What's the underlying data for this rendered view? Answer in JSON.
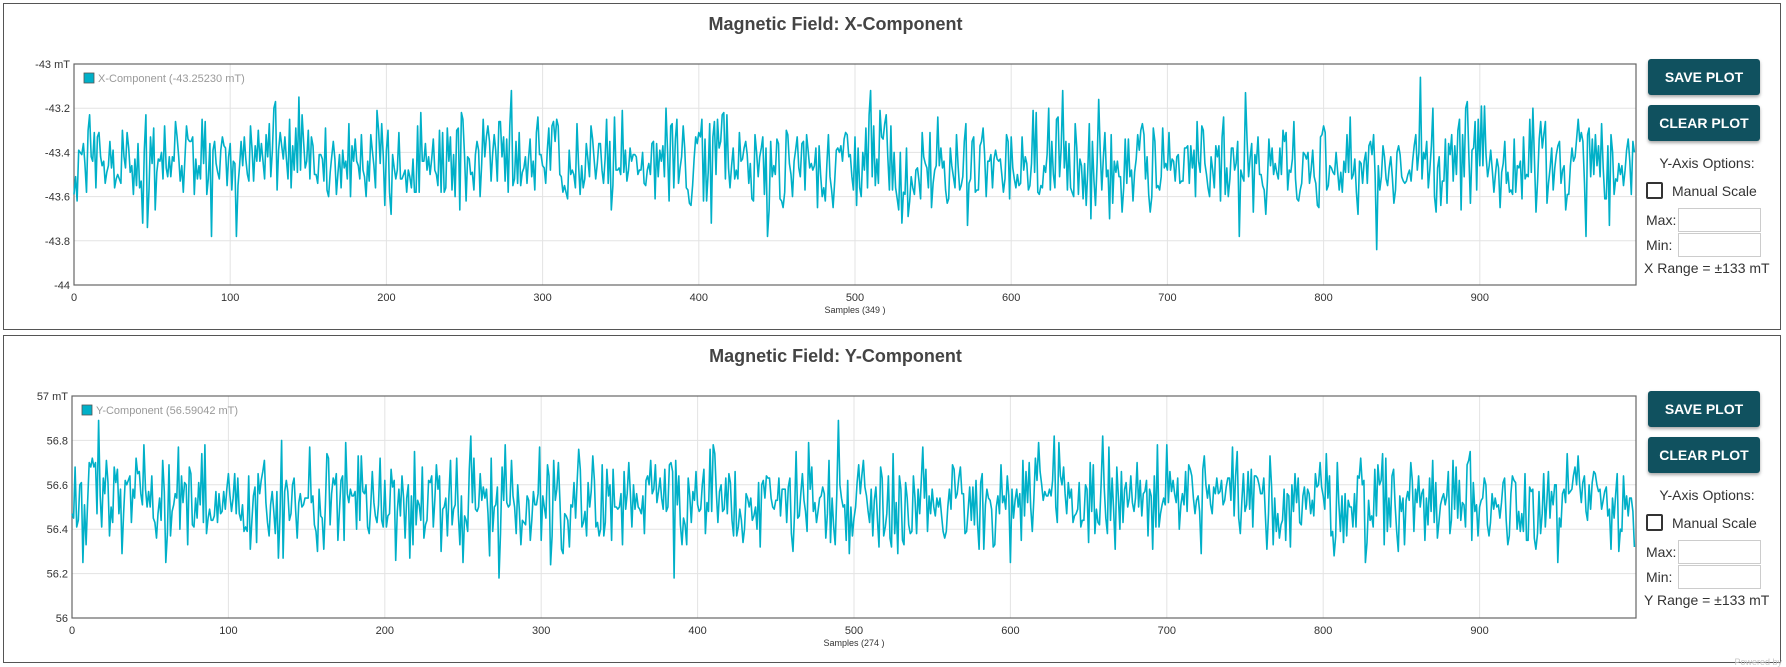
{
  "line_color": "#00b0c8",
  "button_color": "#10515f",
  "watermark": "Powered by",
  "panels": [
    {
      "id": "x",
      "title": "Magnetic Field: X-Component",
      "save_label": "SAVE PLOT",
      "clear_label": "CLEAR PLOT",
      "y_options_label": "Y-Axis Options:",
      "manual_scale_label": "Manual Scale",
      "max_label": "Max:",
      "min_label": "Min:",
      "max_value": "",
      "min_value": "",
      "range_text": "X Range = ±133 mT"
    },
    {
      "id": "y",
      "title": "Magnetic Field: Y-Component",
      "save_label": "SAVE PLOT",
      "clear_label": "CLEAR PLOT",
      "y_options_label": "Y-Axis Options:",
      "manual_scale_label": "Manual Scale",
      "max_label": "Max:",
      "min_label": "Min:",
      "max_value": "",
      "min_value": "",
      "range_text": "Y Range = ±133 mT"
    }
  ],
  "chart_data": [
    {
      "type": "line",
      "title": "Magnetic Field: X-Component",
      "xlabel": "Samples (349 )",
      "ylabel": "",
      "xlim": [
        0,
        1000
      ],
      "ylim": [
        -44,
        -43
      ],
      "x_ticks": [
        0,
        100,
        200,
        300,
        400,
        500,
        600,
        700,
        800,
        900
      ],
      "y_ticks": [
        "-43 mT",
        "-43.2",
        "-43.4",
        "-43.6",
        "-43.8",
        "-44"
      ],
      "y_tick_values": [
        -43,
        -43.2,
        -43.4,
        -43.6,
        -43.8,
        -44
      ],
      "grid": true,
      "legend": "top-left",
      "series": [
        {
          "name": "X-Component (-43.25230 mT)",
          "color": "#00b0c8",
          "sample_count": 1000,
          "mean": -43.45,
          "spread": 0.1,
          "min": -43.84,
          "max": -43.06,
          "step": 0.01,
          "peaks": [
            {
              "x": 862,
              "y": -43.06
            },
            {
              "x": 280,
              "y": -43.12
            },
            {
              "x": 510,
              "y": -43.12
            },
            {
              "x": 633,
              "y": -43.12
            },
            {
              "x": 750,
              "y": -43.13
            }
          ],
          "troughs": [
            {
              "x": 834,
              "y": -43.84
            },
            {
              "x": 88,
              "y": -43.78
            },
            {
              "x": 104,
              "y": -43.78
            },
            {
              "x": 444,
              "y": -43.78
            },
            {
              "x": 746,
              "y": -43.78
            },
            {
              "x": 968,
              "y": -43.78
            }
          ]
        }
      ]
    },
    {
      "type": "line",
      "title": "Magnetic Field: Y-Component",
      "xlabel": "Samples (274 )",
      "ylabel": "",
      "xlim": [
        0,
        1000
      ],
      "ylim": [
        56,
        57
      ],
      "x_ticks": [
        0,
        100,
        200,
        300,
        400,
        500,
        600,
        700,
        800,
        900
      ],
      "y_ticks": [
        "57 mT",
        "56.8",
        "56.6",
        "56.4",
        "56.2",
        "56"
      ],
      "y_tick_values": [
        57,
        56.8,
        56.6,
        56.4,
        56.2,
        56
      ],
      "grid": true,
      "legend": "top-left",
      "series": [
        {
          "name": "Y-Component (56.59042 mT)",
          "color": "#00b0c8",
          "sample_count": 1000,
          "mean": 56.53,
          "spread": 0.1,
          "min": 56.18,
          "max": 56.89,
          "step": 0.01,
          "peaks": [
            {
              "x": 17,
              "y": 56.89
            },
            {
              "x": 490,
              "y": 56.89
            },
            {
              "x": 628,
              "y": 56.82
            },
            {
              "x": 659,
              "y": 56.82
            },
            {
              "x": 46,
              "y": 56.78
            }
          ],
          "troughs": [
            {
              "x": 273,
              "y": 56.18
            },
            {
              "x": 385,
              "y": 56.18
            },
            {
              "x": 60,
              "y": 56.25
            },
            {
              "x": 250,
              "y": 56.25
            },
            {
              "x": 600,
              "y": 56.25
            },
            {
              "x": 950,
              "y": 56.25
            }
          ]
        }
      ]
    }
  ]
}
